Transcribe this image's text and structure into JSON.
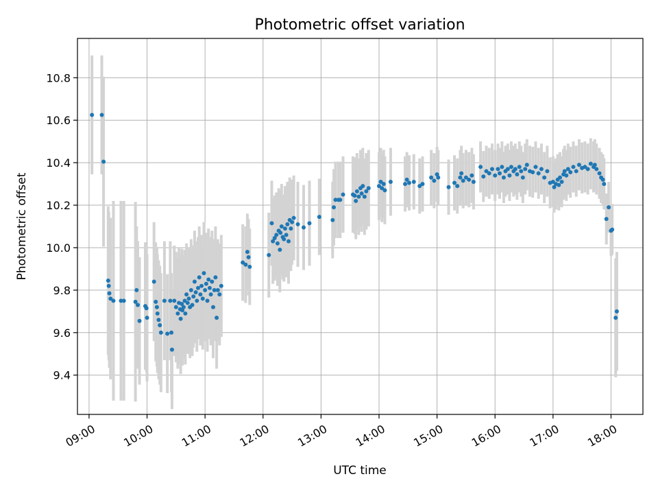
{
  "chart_data": {
    "type": "scatter",
    "title": "Photometric offset variation",
    "xlabel": "UTC time",
    "ylabel": "Photometric offset",
    "x_unit": "hours UTC",
    "xlim": [
      8.8,
      18.55
    ],
    "ylim": [
      9.215,
      10.985
    ],
    "x_ticks": [
      {
        "value": 9,
        "label": "09:00"
      },
      {
        "value": 10,
        "label": "10:00"
      },
      {
        "value": 11,
        "label": "11:00"
      },
      {
        "value": 12,
        "label": "12:00"
      },
      {
        "value": 13,
        "label": "13:00"
      },
      {
        "value": 14,
        "label": "14:00"
      },
      {
        "value": 15,
        "label": "15:00"
      },
      {
        "value": 16,
        "label": "16:00"
      },
      {
        "value": 17,
        "label": "17:00"
      },
      {
        "value": 18,
        "label": "18:00"
      }
    ],
    "y_ticks": [
      {
        "value": 9.4,
        "label": "9.4"
      },
      {
        "value": 9.6,
        "label": "9.6"
      },
      {
        "value": 9.8,
        "label": "9.8"
      },
      {
        "value": 10.0,
        "label": "10.0"
      },
      {
        "value": 10.2,
        "label": "10.2"
      },
      {
        "value": 10.4,
        "label": "10.4"
      },
      {
        "value": 10.6,
        "label": "10.6"
      },
      {
        "value": 10.8,
        "label": "10.8"
      }
    ],
    "grid": true,
    "point_color": "#1f77b4",
    "errorbar_color": "#d3d3d3",
    "points": [
      [
        9.05,
        10.625,
        0.28
      ],
      [
        9.22,
        10.625,
        0.28
      ],
      [
        9.25,
        10.405,
        0.4
      ],
      [
        9.33,
        9.845,
        0.35
      ],
      [
        9.34,
        9.82,
        0.35
      ],
      [
        9.35,
        9.785,
        0.35
      ],
      [
        9.37,
        9.76,
        0.38
      ],
      [
        9.42,
        9.75,
        0.47
      ],
      [
        9.55,
        9.75,
        0.47
      ],
      [
        9.6,
        9.75,
        0.47
      ],
      [
        9.8,
        9.745,
        0.47
      ],
      [
        9.82,
        9.8,
        0.3
      ],
      [
        9.84,
        9.73,
        0.3
      ],
      [
        9.87,
        9.655,
        0.3
      ],
      [
        9.97,
        9.725,
        0.3
      ],
      [
        9.99,
        9.715,
        0.3
      ],
      [
        10.0,
        9.67,
        0.3
      ],
      [
        10.12,
        9.84,
        0.28
      ],
      [
        10.15,
        9.745,
        0.28
      ],
      [
        10.17,
        9.72,
        0.28
      ],
      [
        10.18,
        9.69,
        0.28
      ],
      [
        10.2,
        9.66,
        0.28
      ],
      [
        10.22,
        9.635,
        0.28
      ],
      [
        10.24,
        9.6,
        0.28
      ],
      [
        10.3,
        9.75,
        0.28
      ],
      [
        10.35,
        9.595,
        0.28
      ],
      [
        10.4,
        9.75,
        0.28
      ],
      [
        10.42,
        9.6,
        0.28
      ],
      [
        10.43,
        9.52,
        0.28
      ],
      [
        10.47,
        9.75,
        0.26
      ],
      [
        10.5,
        9.72,
        0.26
      ],
      [
        10.53,
        9.69,
        0.26
      ],
      [
        10.55,
        9.74,
        0.26
      ],
      [
        10.57,
        9.71,
        0.26
      ],
      [
        10.58,
        9.665,
        0.26
      ],
      [
        10.6,
        9.735,
        0.26
      ],
      [
        10.61,
        9.705,
        0.26
      ],
      [
        10.63,
        9.72,
        0.24
      ],
      [
        10.65,
        9.75,
        0.24
      ],
      [
        10.66,
        9.69,
        0.24
      ],
      [
        10.68,
        9.78,
        0.24
      ],
      [
        10.7,
        9.74,
        0.24
      ],
      [
        10.72,
        9.76,
        0.24
      ],
      [
        10.74,
        9.72,
        0.24
      ],
      [
        10.76,
        9.8,
        0.24
      ],
      [
        10.78,
        9.73,
        0.24
      ],
      [
        10.8,
        9.77,
        0.24
      ],
      [
        10.82,
        9.84,
        0.24
      ],
      [
        10.84,
        9.79,
        0.24
      ],
      [
        10.86,
        9.75,
        0.24
      ],
      [
        10.88,
        9.81,
        0.24
      ],
      [
        10.9,
        9.86,
        0.24
      ],
      [
        10.92,
        9.78,
        0.24
      ],
      [
        10.94,
        9.82,
        0.24
      ],
      [
        10.96,
        9.76,
        0.24
      ],
      [
        10.98,
        9.88,
        0.24
      ],
      [
        11.0,
        9.8,
        0.24
      ],
      [
        11.02,
        9.83,
        0.24
      ],
      [
        11.04,
        9.75,
        0.24
      ],
      [
        11.06,
        9.85,
        0.24
      ],
      [
        11.08,
        9.81,
        0.24
      ],
      [
        11.1,
        9.78,
        0.24
      ],
      [
        11.12,
        9.84,
        0.24
      ],
      [
        11.14,
        9.72,
        0.24
      ],
      [
        11.16,
        9.8,
        0.24
      ],
      [
        11.18,
        9.86,
        0.24
      ],
      [
        11.2,
        9.67,
        0.24
      ],
      [
        11.22,
        9.8,
        0.24
      ],
      [
        11.25,
        9.78,
        0.24
      ],
      [
        11.28,
        9.82,
        0.24
      ],
      [
        11.65,
        9.93,
        0.18
      ],
      [
        11.7,
        9.92,
        0.18
      ],
      [
        11.73,
        9.98,
        0.18
      ],
      [
        11.75,
        9.955,
        0.18
      ],
      [
        11.77,
        9.91,
        0.18
      ],
      [
        12.1,
        9.965,
        0.2
      ],
      [
        12.15,
        10.115,
        0.2
      ],
      [
        12.17,
        10.03,
        0.2
      ],
      [
        12.2,
        10.045,
        0.2
      ],
      [
        12.23,
        10.06,
        0.2
      ],
      [
        12.25,
        10.02,
        0.2
      ],
      [
        12.27,
        10.08,
        0.2
      ],
      [
        12.29,
        9.99,
        0.2
      ],
      [
        12.3,
        10.07,
        0.2
      ],
      [
        12.32,
        10.1,
        0.2
      ],
      [
        12.34,
        10.05,
        0.2
      ],
      [
        12.36,
        10.04,
        0.2
      ],
      [
        12.38,
        10.09,
        0.2
      ],
      [
        12.4,
        10.06,
        0.2
      ],
      [
        12.42,
        10.11,
        0.2
      ],
      [
        12.44,
        10.03,
        0.2
      ],
      [
        12.46,
        10.13,
        0.2
      ],
      [
        12.48,
        10.09,
        0.2
      ],
      [
        12.5,
        10.12,
        0.2
      ],
      [
        12.53,
        10.14,
        0.2
      ],
      [
        12.6,
        10.11,
        0.2
      ],
      [
        12.7,
        10.095,
        0.2
      ],
      [
        12.8,
        10.115,
        0.2
      ],
      [
        12.97,
        10.145,
        0.18
      ],
      [
        13.2,
        10.13,
        0.18
      ],
      [
        13.22,
        10.19,
        0.18
      ],
      [
        13.25,
        10.225,
        0.18
      ],
      [
        13.3,
        10.225,
        0.18
      ],
      [
        13.33,
        10.225,
        0.18
      ],
      [
        13.38,
        10.25,
        0.18
      ],
      [
        13.55,
        10.25,
        0.18
      ],
      [
        13.58,
        10.245,
        0.18
      ],
      [
        13.6,
        10.22,
        0.18
      ],
      [
        13.62,
        10.265,
        0.18
      ],
      [
        13.65,
        10.24,
        0.18
      ],
      [
        13.68,
        10.28,
        0.18
      ],
      [
        13.7,
        10.255,
        0.18
      ],
      [
        13.72,
        10.29,
        0.18
      ],
      [
        13.75,
        10.24,
        0.18
      ],
      [
        13.78,
        10.265,
        0.18
      ],
      [
        13.82,
        10.28,
        0.18
      ],
      [
        14.0,
        10.29,
        0.16
      ],
      [
        14.03,
        10.31,
        0.16
      ],
      [
        14.05,
        10.28,
        0.16
      ],
      [
        14.08,
        10.3,
        0.16
      ],
      [
        14.1,
        10.27,
        0.16
      ],
      [
        14.2,
        10.31,
        0.16
      ],
      [
        14.45,
        10.3,
        0.13
      ],
      [
        14.48,
        10.32,
        0.13
      ],
      [
        14.52,
        10.305,
        0.13
      ],
      [
        14.6,
        10.31,
        0.13
      ],
      [
        14.7,
        10.29,
        0.13
      ],
      [
        14.75,
        10.3,
        0.13
      ],
      [
        14.9,
        10.33,
        0.13
      ],
      [
        14.95,
        10.315,
        0.13
      ],
      [
        15.0,
        10.345,
        0.13
      ],
      [
        15.02,
        10.33,
        0.13
      ],
      [
        15.2,
        10.285,
        0.13
      ],
      [
        15.3,
        10.305,
        0.13
      ],
      [
        15.35,
        10.29,
        0.13
      ],
      [
        15.4,
        10.33,
        0.13
      ],
      [
        15.42,
        10.35,
        0.13
      ],
      [
        15.45,
        10.315,
        0.13
      ],
      [
        15.5,
        10.33,
        0.13
      ],
      [
        15.55,
        10.32,
        0.13
      ],
      [
        15.6,
        10.34,
        0.13
      ],
      [
        15.63,
        10.31,
        0.13
      ],
      [
        15.75,
        10.38,
        0.12
      ],
      [
        15.8,
        10.335,
        0.12
      ],
      [
        15.85,
        10.36,
        0.12
      ],
      [
        15.9,
        10.35,
        0.12
      ],
      [
        15.95,
        10.37,
        0.12
      ],
      [
        16.0,
        10.34,
        0.12
      ],
      [
        16.05,
        10.37,
        0.12
      ],
      [
        16.08,
        10.35,
        0.12
      ],
      [
        16.12,
        10.38,
        0.12
      ],
      [
        16.15,
        10.33,
        0.12
      ],
      [
        16.18,
        10.36,
        0.12
      ],
      [
        16.22,
        10.37,
        0.12
      ],
      [
        16.25,
        10.34,
        0.12
      ],
      [
        16.28,
        10.38,
        0.12
      ],
      [
        16.32,
        10.36,
        0.12
      ],
      [
        16.35,
        10.37,
        0.12
      ],
      [
        16.38,
        10.345,
        0.12
      ],
      [
        16.42,
        10.38,
        0.12
      ],
      [
        16.45,
        10.36,
        0.12
      ],
      [
        16.48,
        10.33,
        0.12
      ],
      [
        16.52,
        10.37,
        0.12
      ],
      [
        16.55,
        10.39,
        0.12
      ],
      [
        16.6,
        10.36,
        0.12
      ],
      [
        16.65,
        10.355,
        0.12
      ],
      [
        16.7,
        10.38,
        0.12
      ],
      [
        16.75,
        10.35,
        0.12
      ],
      [
        16.8,
        10.37,
        0.12
      ],
      [
        16.85,
        10.33,
        0.12
      ],
      [
        16.9,
        10.36,
        0.12
      ],
      [
        16.95,
        10.305,
        0.12
      ],
      [
        17.0,
        10.31,
        0.12
      ],
      [
        17.02,
        10.285,
        0.12
      ],
      [
        17.05,
        10.3,
        0.12
      ],
      [
        17.08,
        10.32,
        0.12
      ],
      [
        17.1,
        10.295,
        0.12
      ],
      [
        17.12,
        10.33,
        0.12
      ],
      [
        17.15,
        10.31,
        0.12
      ],
      [
        17.18,
        10.345,
        0.12
      ],
      [
        17.2,
        10.36,
        0.12
      ],
      [
        17.23,
        10.34,
        0.12
      ],
      [
        17.26,
        10.37,
        0.12
      ],
      [
        17.3,
        10.355,
        0.12
      ],
      [
        17.35,
        10.38,
        0.12
      ],
      [
        17.4,
        10.36,
        0.12
      ],
      [
        17.45,
        10.39,
        0.12
      ],
      [
        17.5,
        10.375,
        0.12
      ],
      [
        17.55,
        10.38,
        0.12
      ],
      [
        17.6,
        10.37,
        0.12
      ],
      [
        17.65,
        10.395,
        0.12
      ],
      [
        17.7,
        10.38,
        0.12
      ],
      [
        17.72,
        10.39,
        0.12
      ],
      [
        17.75,
        10.37,
        0.12
      ],
      [
        17.8,
        10.35,
        0.12
      ],
      [
        17.83,
        10.33,
        0.12
      ],
      [
        17.86,
        10.32,
        0.12
      ],
      [
        17.88,
        10.3,
        0.12
      ],
      [
        17.92,
        10.135,
        0.12
      ],
      [
        17.96,
        10.19,
        0.12
      ],
      [
        18.0,
        10.08,
        0.12
      ],
      [
        18.02,
        10.085,
        0.12
      ],
      [
        18.08,
        9.67,
        0.28
      ],
      [
        18.1,
        9.7,
        0.28
      ]
    ]
  }
}
